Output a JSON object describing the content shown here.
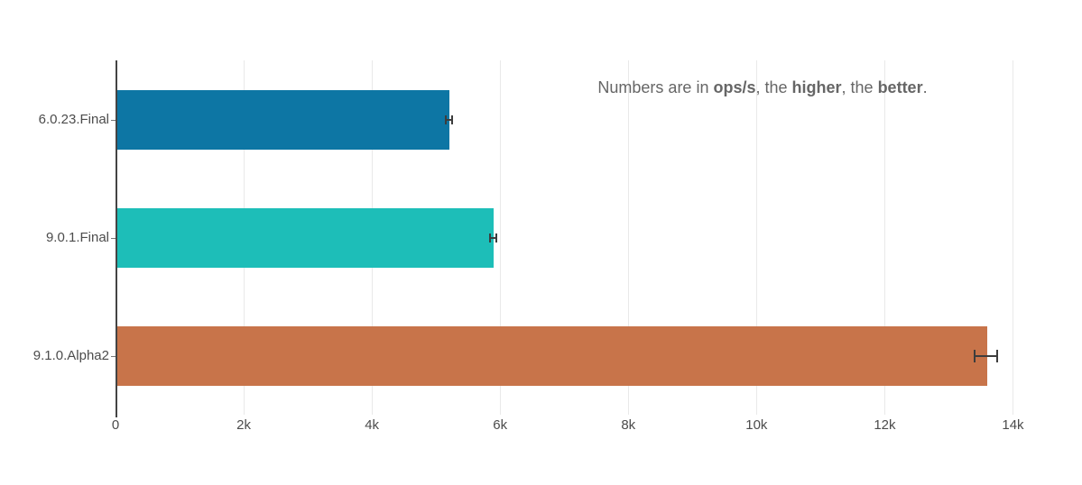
{
  "chart_data": {
    "type": "bar",
    "orientation": "horizontal",
    "title": "",
    "categories": [
      "6.0.23.Final",
      "9.0.1.Final",
      "9.1.0.Alpha2"
    ],
    "values": [
      5200,
      5890,
      13580
    ],
    "error_plus_minus": [
      60,
      65,
      190
    ],
    "unit": "ops/s",
    "bar_colors": [
      "#0d76a4",
      "#1dbeb8",
      "#c8744a"
    ],
    "x_axis": {
      "tick_values": [
        0,
        2000,
        4000,
        6000,
        8000,
        10000,
        12000,
        14000
      ],
      "tick_labels": [
        "0",
        "2k",
        "4k",
        "6k",
        "8k",
        "10k",
        "12k",
        "14k"
      ],
      "range": [
        0,
        14500
      ]
    },
    "grid": true,
    "legend": "none",
    "annotation": {
      "segments": [
        {
          "text": "Numbers are in ",
          "bold": false
        },
        {
          "text": "ops/s",
          "bold": true
        },
        {
          "text": ", the ",
          "bold": false
        },
        {
          "text": "higher",
          "bold": true
        },
        {
          "text": ", the ",
          "bold": false
        },
        {
          "text": "better",
          "bold": true
        },
        {
          "text": ".",
          "bold": false
        }
      ]
    },
    "colors": {
      "background": "#ffffff",
      "gridline": "#e9e9e9",
      "zeroline": "#444444",
      "tick_text": "#4c4c4c",
      "ytick_mark": "#777777",
      "annotation_text": "#666666",
      "error_bar": "#3d3d3d"
    }
  }
}
